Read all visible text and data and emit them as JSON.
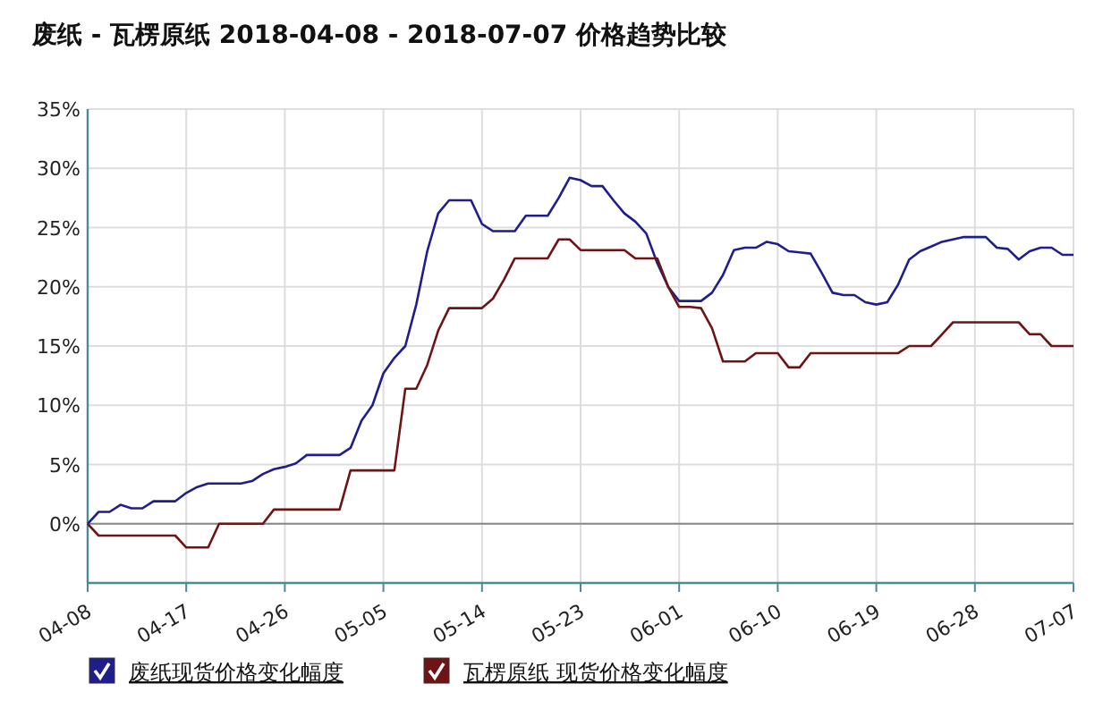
{
  "chart_data": {
    "type": "line",
    "title": "废纸 - 瓦楞原纸 2018-04-08 - 2018-07-07 价格趋势比较",
    "x": [
      "--04-08",
      "--04-09",
      "--04-10",
      "--04-11",
      "--04-12",
      "--04-13",
      "--04-14",
      "--04-15",
      "--04-16",
      "--04-17",
      "--04-18",
      "--04-19",
      "--04-20",
      "--04-21",
      "--04-22",
      "--04-23",
      "--04-24",
      "--04-25",
      "--04-26",
      "--04-27",
      "--04-28",
      "--04-29",
      "--04-30",
      "--05-01",
      "--05-02",
      "--05-03",
      "--05-04",
      "--05-05",
      "--05-06",
      "--05-07",
      "--05-08",
      "--05-09",
      "--05-10",
      "--05-11",
      "--05-12",
      "--05-13",
      "--05-14",
      "--05-15",
      "--05-16",
      "--05-17",
      "--05-18",
      "--05-19",
      "--05-20",
      "--05-21",
      "--05-22",
      "--05-23",
      "--05-24",
      "--05-25",
      "--05-26",
      "--05-27",
      "--05-28",
      "--05-29",
      "--05-30",
      "--05-31",
      "--06-01",
      "--06-02",
      "--06-03",
      "--06-04",
      "--06-05",
      "--06-06",
      "--06-07",
      "--06-08",
      "--06-09",
      "--06-10",
      "--06-11",
      "--06-12",
      "--06-13",
      "--06-14",
      "--06-15",
      "--06-16",
      "--06-17",
      "--06-18",
      "--06-19",
      "--06-20",
      "--06-21",
      "--06-22",
      "--06-23",
      "--06-24",
      "--06-25",
      "--06-26",
      "--06-27",
      "--06-28",
      "--06-29",
      "--06-30",
      "--07-01",
      "--07-02",
      "--07-03",
      "--07-04",
      "--07-05",
      "--07-06",
      "--07-07"
    ],
    "series": [
      {
        "name": "废纸现货价格变化幅度",
        "color": "#1e1e8c",
        "values": [
          0,
          1.0,
          1.0,
          1.6,
          1.3,
          1.3,
          1.9,
          1.9,
          1.9,
          2.6,
          3.1,
          3.4,
          3.4,
          3.4,
          3.4,
          3.6,
          4.2,
          4.6,
          4.8,
          5.1,
          5.8,
          5.8,
          5.8,
          5.8,
          6.4,
          8.7,
          10.0,
          12.7,
          14.0,
          15.0,
          18.5,
          23.0,
          26.2,
          27.3,
          27.3,
          27.3,
          25.3,
          24.7,
          24.7,
          24.7,
          26.0,
          26.0,
          26.0,
          27.5,
          29.2,
          29.0,
          28.5,
          28.5,
          27.3,
          26.2,
          25.5,
          24.5,
          22.0,
          20.0,
          18.8,
          18.8,
          18.8,
          19.5,
          21.0,
          23.1,
          23.3,
          23.3,
          23.8,
          23.6,
          23.0,
          22.9,
          22.8,
          21.2,
          19.5,
          19.3,
          19.3,
          18.7,
          18.5,
          18.7,
          20.2,
          22.3,
          23.0,
          23.4,
          23.8,
          24.0,
          24.2,
          24.2,
          24.2,
          23.3,
          23.2,
          22.3,
          23.0,
          23.3,
          23.3,
          22.7,
          22.7
        ]
      },
      {
        "name": "瓦楞原纸 现货价格变化幅度",
        "color": "#6e1414",
        "values": [
          0,
          -1.0,
          -1.0,
          -1.0,
          -1.0,
          -1.0,
          -1.0,
          -1.0,
          -1.0,
          -2.0,
          -2.0,
          -2.0,
          0,
          0,
          0,
          0,
          0,
          1.2,
          1.2,
          1.2,
          1.2,
          1.2,
          1.2,
          1.2,
          4.5,
          4.5,
          4.5,
          4.5,
          4.5,
          11.4,
          11.4,
          13.4,
          16.3,
          18.2,
          18.2,
          18.2,
          18.2,
          19.0,
          20.6,
          22.4,
          22.4,
          22.4,
          22.4,
          24.0,
          24.0,
          23.1,
          23.1,
          23.1,
          23.1,
          23.1,
          22.4,
          22.4,
          22.4,
          20.0,
          18.3,
          18.3,
          18.2,
          16.5,
          13.7,
          13.7,
          13.7,
          14.4,
          14.4,
          14.4,
          13.2,
          13.2,
          14.4,
          14.4,
          14.4,
          14.4,
          14.4,
          14.4,
          14.4,
          14.4,
          14.4,
          15.0,
          15.0,
          15.0,
          16.0,
          17.0,
          17.0,
          17.0,
          17.0,
          17.0,
          17.0,
          17.0,
          16.0,
          16.0,
          15.0,
          15.0,
          15.0
        ]
      }
    ],
    "xlim": [
      "--04-08",
      "--07-07"
    ],
    "xticks": [
      {
        "value": "--04-08",
        "label": "04-08"
      },
      {
        "value": "--04-17",
        "label": "04-17"
      },
      {
        "value": "--04-26",
        "label": "04-26"
      },
      {
        "value": "--05-05",
        "label": "05-05"
      },
      {
        "value": "--05-14",
        "label": "05-14"
      },
      {
        "value": "--05-23",
        "label": "05-23"
      },
      {
        "value": "--06-01",
        "label": "06-01"
      },
      {
        "value": "--06-10",
        "label": "06-10"
      },
      {
        "value": "--06-19",
        "label": "06-19"
      },
      {
        "value": "--06-28",
        "label": "06-28"
      },
      {
        "value": "--07-07",
        "label": "07-07"
      }
    ],
    "ylim": [
      -5,
      35
    ],
    "yticks": [
      {
        "value": 0,
        "label": "0%"
      },
      {
        "value": 5,
        "label": "5%"
      },
      {
        "value": 10,
        "label": "10%"
      },
      {
        "value": 15,
        "label": "15%"
      },
      {
        "value": 20,
        "label": "20%"
      },
      {
        "value": 25,
        "label": "25%"
      },
      {
        "value": 30,
        "label": "30%"
      },
      {
        "value": 35,
        "label": "35%"
      }
    ],
    "ref_lines": [
      {
        "axis": "y",
        "value": 0,
        "color": "#888888"
      }
    ],
    "grid": true,
    "legend": "bottom",
    "marker": "none",
    "line_style": "solid"
  }
}
